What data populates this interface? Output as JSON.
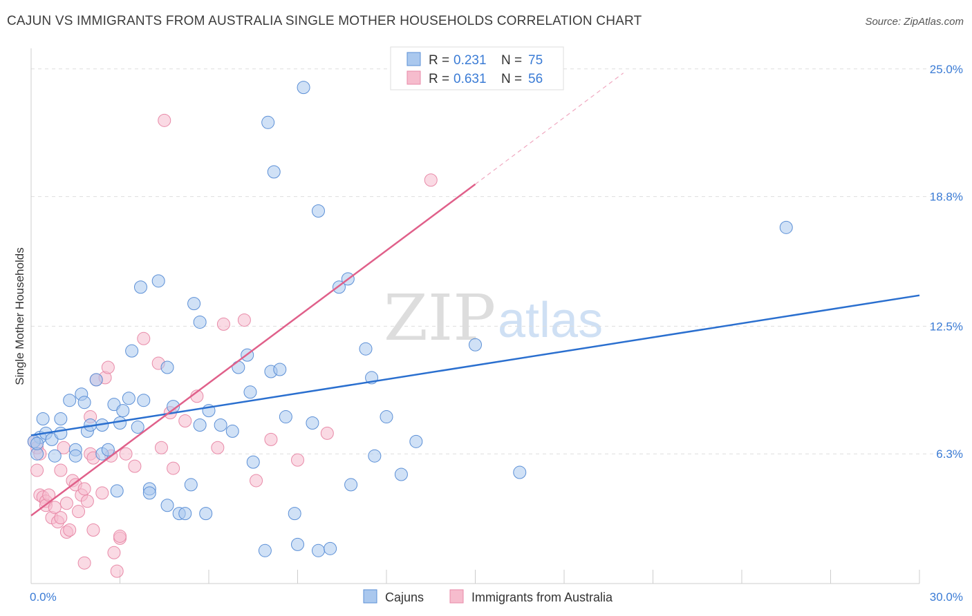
{
  "header": {
    "title": "CAJUN VS IMMIGRANTS FROM AUSTRALIA SINGLE MOTHER HOUSEHOLDS CORRELATION CHART",
    "source": "Source: ZipAtlas.com"
  },
  "watermark": {
    "zip": "ZIP",
    "atlas": "atlas"
  },
  "colors": {
    "cajuns_fill": "#aac8ee",
    "cajuns_stroke": "#5b8fd6",
    "cajuns_line": "#2a6fcf",
    "immigrants_fill": "#f6bccd",
    "immigrants_stroke": "#e88aa8",
    "immigrants_line": "#e0608a",
    "tick_text": "#3a7bd5",
    "grid": "#dddddd"
  },
  "legend": {
    "rows": [
      {
        "r_label": "R =",
        "r_value": "0.231",
        "n_label": "N =",
        "n_value": "75"
      },
      {
        "r_label": "R =",
        "r_value": "0.631",
        "n_label": "N =",
        "n_value": "56"
      }
    ]
  },
  "bottom_legend": {
    "cajuns": "Cajuns",
    "immigrants": "Immigrants from Australia"
  },
  "chart_data": {
    "type": "scatter",
    "title": "CAJUN VS IMMIGRANTS FROM AUSTRALIA SINGLE MOTHER HOUSEHOLDS CORRELATION CHART",
    "xlabel": "",
    "ylabel": "Single Mother Households",
    "xlim": [
      0,
      30
    ],
    "ylim": [
      0,
      26
    ],
    "x_tick_labels": [
      "0.0%",
      "30.0%"
    ],
    "y_ticks": [
      6.3,
      12.5,
      18.8,
      25.0
    ],
    "y_tick_labels": [
      "6.3%",
      "12.5%",
      "18.8%",
      "25.0%"
    ],
    "grid": true,
    "legend_position": "top-center",
    "series": [
      {
        "name": "Cajuns",
        "r": 0.231,
        "n": 75,
        "trend": {
          "x": [
            0,
            30
          ],
          "y": [
            7.2,
            14.0
          ]
        },
        "points": [
          [
            0.2,
            6.3
          ],
          [
            0.3,
            7.1
          ],
          [
            0.4,
            8.0
          ],
          [
            0.5,
            7.3
          ],
          [
            0.7,
            7.0
          ],
          [
            0.8,
            6.2
          ],
          [
            1.0,
            7.3
          ],
          [
            1.0,
            8.0
          ],
          [
            1.3,
            8.9
          ],
          [
            1.5,
            6.5
          ],
          [
            1.5,
            6.2
          ],
          [
            1.7,
            9.2
          ],
          [
            1.8,
            8.8
          ],
          [
            1.9,
            7.4
          ],
          [
            2.0,
            7.7
          ],
          [
            2.2,
            9.9
          ],
          [
            2.4,
            7.7
          ],
          [
            2.4,
            6.3
          ],
          [
            2.6,
            6.5
          ],
          [
            2.8,
            8.7
          ],
          [
            2.9,
            4.5
          ],
          [
            3.0,
            7.8
          ],
          [
            3.1,
            8.4
          ],
          [
            3.3,
            9.0
          ],
          [
            3.4,
            11.3
          ],
          [
            3.6,
            7.6
          ],
          [
            3.7,
            14.4
          ],
          [
            3.8,
            8.9
          ],
          [
            4.0,
            4.6
          ],
          [
            4.0,
            4.4
          ],
          [
            4.3,
            14.7
          ],
          [
            4.6,
            10.5
          ],
          [
            4.6,
            3.8
          ],
          [
            4.8,
            8.6
          ],
          [
            5.0,
            3.4
          ],
          [
            5.2,
            3.4
          ],
          [
            5.4,
            4.8
          ],
          [
            5.5,
            13.6
          ],
          [
            5.7,
            12.7
          ],
          [
            5.7,
            7.7
          ],
          [
            5.9,
            3.4
          ],
          [
            6.0,
            8.4
          ],
          [
            6.4,
            7.7
          ],
          [
            6.8,
            7.4
          ],
          [
            7.0,
            10.5
          ],
          [
            7.3,
            11.1
          ],
          [
            7.4,
            9.3
          ],
          [
            7.5,
            5.9
          ],
          [
            7.9,
            1.6
          ],
          [
            8.0,
            22.4
          ],
          [
            8.1,
            10.3
          ],
          [
            8.2,
            20.0
          ],
          [
            8.4,
            10.4
          ],
          [
            8.6,
            8.1
          ],
          [
            8.9,
            3.4
          ],
          [
            9.0,
            1.9
          ],
          [
            9.2,
            24.1
          ],
          [
            9.5,
            7.8
          ],
          [
            9.7,
            18.1
          ],
          [
            9.7,
            1.6
          ],
          [
            10.1,
            1.7
          ],
          [
            10.4,
            14.4
          ],
          [
            10.7,
            14.8
          ],
          [
            10.8,
            4.8
          ],
          [
            11.3,
            11.4
          ],
          [
            11.5,
            10.0
          ],
          [
            11.6,
            6.2
          ],
          [
            12.0,
            8.1
          ],
          [
            12.5,
            5.3
          ],
          [
            13.0,
            6.9
          ],
          [
            15.0,
            11.6
          ],
          [
            16.5,
            5.4
          ],
          [
            25.5,
            17.3
          ],
          [
            0.1,
            6.9
          ],
          [
            0.2,
            6.8
          ]
        ]
      },
      {
        "name": "Immigrants from Australia",
        "r": 0.631,
        "n": 56,
        "trend": {
          "x": [
            0,
            15
          ],
          "y": [
            3.3,
            19.4
          ]
        },
        "trend_dashed": {
          "x": [
            15,
            20
          ],
          "y": [
            19.4,
            24.8
          ]
        },
        "points": [
          [
            0.1,
            6.9
          ],
          [
            0.2,
            6.6
          ],
          [
            0.3,
            6.3
          ],
          [
            0.2,
            5.5
          ],
          [
            0.3,
            4.3
          ],
          [
            0.4,
            4.2
          ],
          [
            0.5,
            4.0
          ],
          [
            0.5,
            3.8
          ],
          [
            0.6,
            4.3
          ],
          [
            0.7,
            3.2
          ],
          [
            0.8,
            3.7
          ],
          [
            0.9,
            3.0
          ],
          [
            1.0,
            3.2
          ],
          [
            1.1,
            6.6
          ],
          [
            1.0,
            5.5
          ],
          [
            1.2,
            3.9
          ],
          [
            1.2,
            2.5
          ],
          [
            1.3,
            2.6
          ],
          [
            1.4,
            5.0
          ],
          [
            1.5,
            4.8
          ],
          [
            1.6,
            3.5
          ],
          [
            1.7,
            4.3
          ],
          [
            1.8,
            4.6
          ],
          [
            1.8,
            1.0
          ],
          [
            1.9,
            4.0
          ],
          [
            2.0,
            6.3
          ],
          [
            2.0,
            8.1
          ],
          [
            2.1,
            6.1
          ],
          [
            2.1,
            2.6
          ],
          [
            2.2,
            9.9
          ],
          [
            2.4,
            4.4
          ],
          [
            2.5,
            10.0
          ],
          [
            2.6,
            10.5
          ],
          [
            2.7,
            6.2
          ],
          [
            2.8,
            1.5
          ],
          [
            2.9,
            0.6
          ],
          [
            3.0,
            2.2
          ],
          [
            3.0,
            2.3
          ],
          [
            3.2,
            6.3
          ],
          [
            3.5,
            5.7
          ],
          [
            3.8,
            11.9
          ],
          [
            4.3,
            10.7
          ],
          [
            4.4,
            6.6
          ],
          [
            4.5,
            22.5
          ],
          [
            4.7,
            8.3
          ],
          [
            4.8,
            5.6
          ],
          [
            5.2,
            7.9
          ],
          [
            5.6,
            9.1
          ],
          [
            6.3,
            6.6
          ],
          [
            6.5,
            12.6
          ],
          [
            7.2,
            12.8
          ],
          [
            7.6,
            5.0
          ],
          [
            8.1,
            7.0
          ],
          [
            9.0,
            6.0
          ],
          [
            10.0,
            7.3
          ],
          [
            13.5,
            19.6
          ]
        ]
      }
    ]
  }
}
